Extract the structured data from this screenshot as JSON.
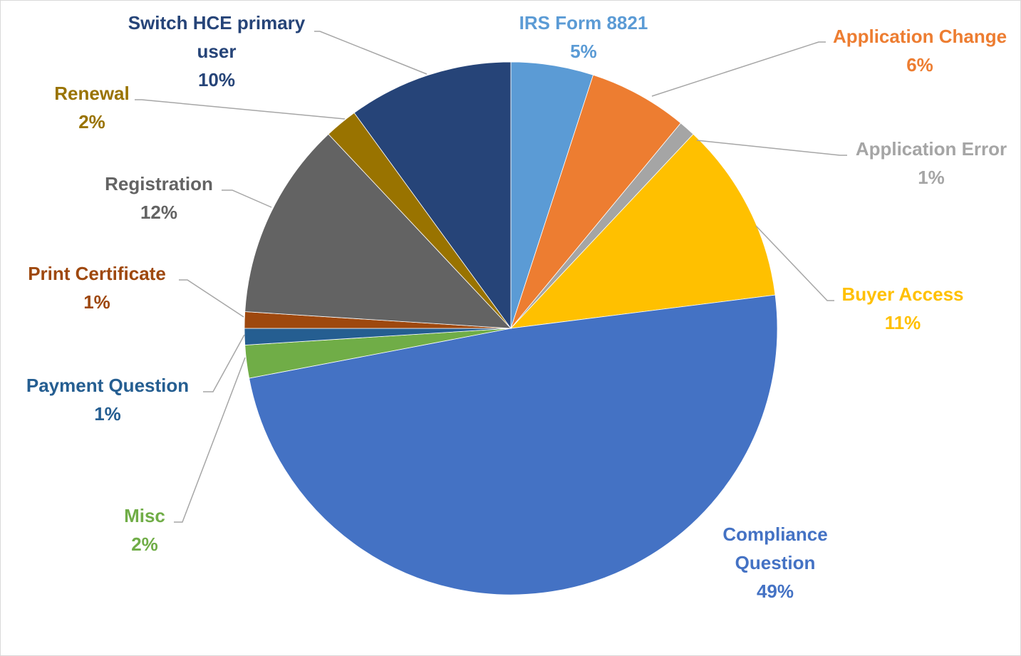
{
  "chart_data": {
    "type": "pie",
    "title": "",
    "slices": [
      {
        "label_lines": [
          "IRS Form 8821"
        ],
        "value": 5,
        "pct_label": "5%",
        "color": "#5b9bd5",
        "text_color": "#5b9bd5"
      },
      {
        "label_lines": [
          "Application Change"
        ],
        "value": 6,
        "pct_label": "6%",
        "color": "#ed7d31",
        "text_color": "#ed7d31"
      },
      {
        "label_lines": [
          "Application Error"
        ],
        "value": 1,
        "pct_label": "1%",
        "color": "#a5a5a5",
        "text_color": "#a5a5a5"
      },
      {
        "label_lines": [
          "Buyer Access"
        ],
        "value": 11,
        "pct_label": "11%",
        "color": "#ffc000",
        "text_color": "#ffc000"
      },
      {
        "label_lines": [
          "Compliance",
          "Question"
        ],
        "value": 49,
        "pct_label": "49%",
        "color": "#4472c4",
        "text_color": "#4472c4"
      },
      {
        "label_lines": [
          "Misc"
        ],
        "value": 2,
        "pct_label": "2%",
        "color": "#70ad47",
        "text_color": "#70ad47"
      },
      {
        "label_lines": [
          "Payment Question"
        ],
        "value": 1,
        "pct_label": "1%",
        "color": "#255e91",
        "text_color": "#255e91"
      },
      {
        "label_lines": [
          "Print Certificate"
        ],
        "value": 1,
        "pct_label": "1%",
        "color": "#9e480e",
        "text_color": "#9e480e"
      },
      {
        "label_lines": [
          "Registration"
        ],
        "value": 12,
        "pct_label": "12%",
        "color": "#636363",
        "text_color": "#636363"
      },
      {
        "label_lines": [
          "Renewal"
        ],
        "value": 2,
        "pct_label": "2%",
        "color": "#997300",
        "text_color": "#997300"
      },
      {
        "label_lines": [
          "Switch HCE primary",
          "user"
        ],
        "value": 10,
        "pct_label": "10%",
        "color": "#264478",
        "text_color": "#264478"
      }
    ],
    "start_angle": "12 o'clock",
    "direction": "clockwise",
    "leader_line_color": "#a6a6a6",
    "legend": "none"
  }
}
